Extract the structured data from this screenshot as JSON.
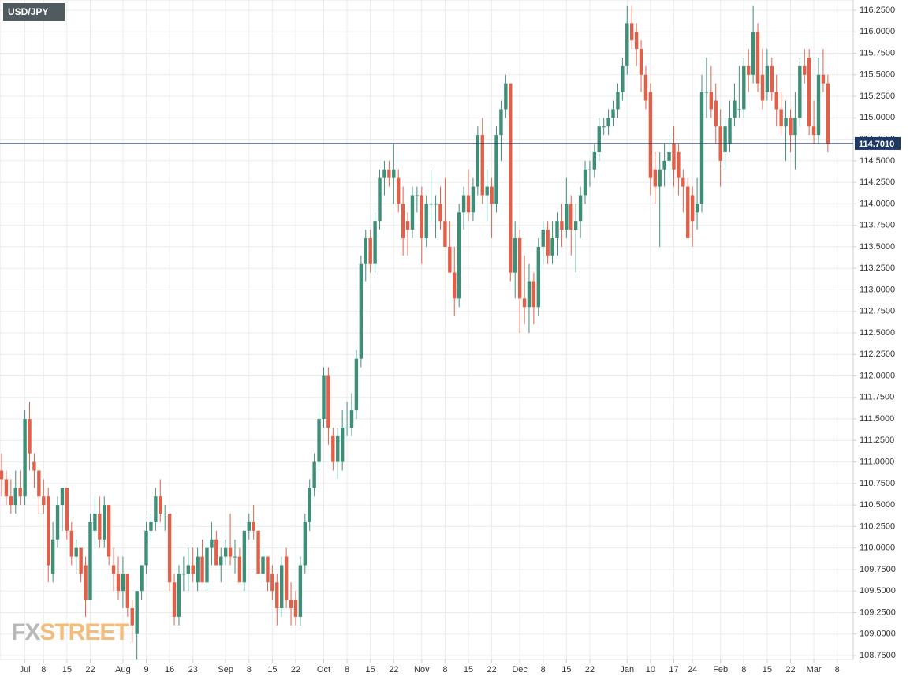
{
  "chart_data": {
    "type": "candlestick",
    "title": "USD/JPY",
    "watermark_prefix": "FX",
    "watermark_suffix": "STREET",
    "up_color": "#3f8f78",
    "down_color": "#e0604a",
    "grid": true,
    "categories": [
      null,
      null,
      null,
      null,
      null,
      "Jul",
      null,
      null,
      null,
      "8",
      null,
      null,
      null,
      null,
      "15",
      null,
      null,
      null,
      null,
      "22",
      null,
      null,
      null,
      null,
      null,
      null,
      "Aug",
      null,
      null,
      null,
      null,
      "9",
      null,
      null,
      null,
      null,
      "16",
      null,
      null,
      null,
      null,
      "23",
      null,
      null,
      null,
      null,
      null,
      null,
      "Sep",
      null,
      null,
      null,
      null,
      "8",
      null,
      null,
      null,
      null,
      "15",
      null,
      null,
      null,
      null,
      "22",
      null,
      null,
      null,
      null,
      null,
      "Oct",
      null,
      null,
      null,
      null,
      "8",
      null,
      null,
      null,
      null,
      "15",
      null,
      null,
      null,
      null,
      "22",
      null,
      null,
      null,
      null,
      null,
      "Nov",
      null,
      null,
      null,
      null,
      "8",
      null,
      null,
      null,
      null,
      "15",
      null,
      null,
      null,
      null,
      "22",
      null,
      null,
      null,
      null,
      null,
      "Dec",
      null,
      null,
      null,
      null,
      "8",
      null,
      null,
      null,
      null,
      "15",
      null,
      null,
      null,
      null,
      "22",
      null,
      null,
      null,
      null,
      null,
      null,
      null,
      "Jan",
      null,
      null,
      null,
      null,
      "10",
      null,
      null,
      null,
      null,
      "17",
      null,
      null,
      null,
      "24",
      null,
      null,
      null,
      null,
      null,
      "Feb",
      null,
      null,
      null,
      null,
      "8",
      null,
      null,
      null,
      null,
      "15",
      null,
      null,
      null,
      null,
      "22",
      null,
      null,
      null,
      null,
      "Mar",
      null,
      null,
      null,
      null,
      "8"
    ],
    "open": [
      110.9,
      110.8,
      110.6,
      110.5,
      110.7,
      110.6,
      111.5,
      111.0,
      110.9,
      110.6,
      110.6,
      109.7,
      110.1,
      110.5,
      110.7,
      110.2,
      109.9,
      110.0,
      109.8,
      109.4,
      110.2,
      110.4,
      110.1,
      110.5,
      109.8,
      109.7,
      109.5,
      109.7,
      109.3,
      109.0,
      109.5,
      109.8,
      110.2,
      110.3,
      110.6,
      110.4,
      110.4,
      109.6,
      109.2,
      109.7,
      109.7,
      109.8,
      109.6,
      109.9,
      109.6,
      110.0,
      110.1,
      109.8,
      109.9,
      110.0,
      109.9,
      109.9,
      109.6,
      110.2,
      110.3,
      110.2,
      109.7,
      109.9,
      109.7,
      109.6,
      109.3,
      109.9,
      109.4,
      109.4,
      109.2,
      109.8,
      110.3,
      110.7,
      111.0,
      111.5,
      112.0,
      111.3,
      111.0,
      111.0,
      111.4,
      111.4,
      111.6,
      112.2,
      113.3,
      113.6,
      113.3,
      113.8,
      114.3,
      114.4,
      114.3,
      114.3,
      114.0,
      113.8,
      113.7,
      114.1,
      114.1,
      113.6,
      114.0,
      114.0,
      114.0,
      113.8,
      113.5,
      113.2,
      112.9,
      113.9,
      114.1,
      113.9,
      114.2,
      114.8,
      114.1,
      114.2,
      114.0,
      114.8,
      115.1,
      115.4,
      113.2,
      113.6,
      112.9,
      112.8,
      113.1,
      112.8,
      113.5,
      113.7,
      113.4,
      113.6,
      113.8,
      113.7,
      114.0,
      113.7,
      113.8,
      114.1,
      114.4,
      114.4,
      114.6,
      114.9,
      114.9,
      115.0,
      115.1,
      115.3,
      115.6,
      116.1,
      116.0,
      115.8,
      115.5,
      115.3,
      114.4,
      114.2,
      114.4,
      114.5,
      114.7,
      114.6,
      114.3,
      114.2,
      114.1,
      113.9,
      114.0,
      115.3,
      115.3,
      115.2,
      114.9,
      114.6,
      114.7,
      115.0,
      115.1,
      115.1,
      115.6,
      115.5,
      116.0,
      115.5,
      115.3,
      115.6,
      115.3,
      115.1,
      114.9,
      115.0,
      114.8,
      115.0,
      115.6,
      115.7,
      114.9,
      114.8,
      115.5,
      115.4,
      null,
      null
    ],
    "high": [
      111.1,
      110.9,
      110.8,
      110.9,
      110.9,
      111.6,
      111.7,
      111.1,
      110.9,
      110.8,
      110.7,
      110.3,
      110.6,
      110.7,
      110.7,
      110.3,
      110.1,
      110.0,
      109.9,
      110.4,
      110.6,
      110.6,
      110.6,
      110.5,
      110.0,
      109.9,
      109.9,
      109.7,
      109.4,
      109.5,
      109.8,
      110.3,
      110.4,
      110.7,
      110.8,
      110.5,
      110.4,
      109.7,
      109.8,
      109.9,
      110.0,
      110.0,
      110.0,
      110.1,
      110.1,
      110.3,
      110.2,
      110.0,
      110.1,
      110.4,
      110.1,
      110.0,
      110.2,
      110.4,
      110.5,
      110.2,
      110.0,
      109.9,
      109.8,
      109.7,
      109.9,
      110.0,
      109.6,
      109.5,
      109.9,
      110.4,
      110.8,
      111.1,
      111.6,
      112.1,
      112.1,
      111.4,
      111.4,
      111.6,
      111.7,
      111.8,
      112.3,
      113.4,
      113.7,
      113.7,
      113.9,
      114.4,
      114.5,
      114.5,
      114.7,
      114.4,
      114.2,
      113.9,
      114.2,
      114.2,
      114.2,
      114.1,
      114.4,
      114.1,
      114.2,
      114.3,
      113.8,
      113.5,
      114.0,
      114.2,
      114.4,
      114.3,
      114.9,
      115.0,
      114.4,
      114.3,
      114.9,
      115.2,
      115.5,
      115.4,
      113.8,
      113.7,
      113.4,
      113.3,
      113.2,
      113.6,
      113.8,
      113.8,
      113.8,
      113.9,
      114.0,
      114.3,
      114.1,
      114.0,
      114.2,
      114.5,
      114.5,
      114.7,
      115.0,
      115.0,
      115.1,
      115.2,
      115.4,
      115.7,
      116.3,
      116.3,
      116.1,
      115.9,
      115.6,
      115.4,
      114.6,
      114.6,
      114.7,
      114.8,
      114.9,
      114.7,
      114.4,
      114.3,
      114.2,
      114.3,
      115.5,
      115.7,
      115.6,
      115.4,
      115.1,
      115.0,
      115.2,
      115.4,
      115.6,
      115.7,
      115.8,
      116.3,
      116.1,
      115.8,
      115.8,
      115.7,
      115.5,
      115.3,
      115.2,
      115.1,
      115.3,
      115.7,
      115.8,
      115.8,
      115.2,
      115.7,
      115.8,
      115.5,
      null,
      null
    ],
    "low": [
      110.6,
      110.5,
      110.4,
      110.4,
      110.5,
      110.5,
      110.9,
      110.7,
      110.4,
      110.4,
      109.6,
      109.6,
      110.0,
      110.2,
      110.1,
      109.8,
      109.7,
      109.6,
      109.2,
      109.4,
      110.0,
      110.0,
      110.0,
      109.8,
      109.5,
      109.4,
      109.3,
      109.2,
      108.9,
      108.7,
      109.4,
      109.7,
      110.1,
      110.2,
      110.3,
      110.2,
      109.5,
      109.1,
      109.1,
      109.5,
      109.5,
      109.6,
      109.5,
      109.6,
      109.5,
      109.8,
      109.8,
      109.6,
      109.8,
      109.8,
      109.7,
      109.6,
      109.5,
      110.1,
      110.1,
      109.7,
      109.6,
      109.5,
      109.4,
      109.1,
      109.2,
      109.3,
      109.1,
      109.1,
      109.1,
      109.7,
      110.2,
      110.6,
      110.9,
      111.4,
      111.2,
      110.9,
      110.8,
      110.9,
      111.3,
      111.3,
      111.5,
      112.1,
      113.1,
      113.2,
      113.2,
      113.7,
      114.1,
      114.2,
      114.0,
      113.9,
      113.4,
      113.4,
      113.6,
      113.9,
      113.3,
      113.5,
      113.8,
      113.6,
      113.7,
      113.5,
      113.2,
      112.7,
      112.8,
      113.7,
      113.8,
      113.8,
      114.1,
      114.0,
      113.8,
      113.6,
      113.9,
      114.5,
      115.0,
      113.1,
      112.9,
      112.5,
      112.6,
      112.5,
      112.6,
      112.7,
      113.3,
      113.3,
      113.3,
      113.4,
      113.5,
      113.6,
      113.4,
      113.2,
      113.6,
      114.0,
      114.2,
      114.3,
      114.5,
      114.8,
      114.8,
      114.9,
      115.0,
      115.2,
      115.5,
      115.8,
      115.6,
      115.3,
      115.1,
      114.1,
      114.0,
      113.5,
      114.2,
      114.3,
      114.2,
      114.1,
      113.9,
      113.6,
      113.5,
      113.7,
      113.9,
      115.0,
      115.0,
      114.7,
      114.2,
      114.4,
      114.6,
      114.9,
      115.0,
      115.0,
      115.3,
      115.4,
      115.3,
      115.1,
      115.2,
      115.2,
      114.9,
      114.8,
      114.5,
      114.6,
      114.4,
      114.9,
      115.4,
      114.8,
      114.7,
      114.7,
      115.3,
      114.6,
      null,
      null
    ],
    "close": [
      110.8,
      110.6,
      110.5,
      110.7,
      110.6,
      111.5,
      111.1,
      110.9,
      110.6,
      110.5,
      109.8,
      110.1,
      110.5,
      110.7,
      110.2,
      109.9,
      110.0,
      109.7,
      109.4,
      110.3,
      110.4,
      110.1,
      110.5,
      109.9,
      109.7,
      109.5,
      109.7,
      109.3,
      109.1,
      109.5,
      109.8,
      110.2,
      110.3,
      110.6,
      110.4,
      110.4,
      109.6,
      109.2,
      109.7,
      109.7,
      109.8,
      109.7,
      109.9,
      109.6,
      110.0,
      110.1,
      109.8,
      109.9,
      110.0,
      109.9,
      109.9,
      109.6,
      110.2,
      110.3,
      110.2,
      109.7,
      109.9,
      109.6,
      109.5,
      109.3,
      109.8,
      109.4,
      109.3,
      109.2,
      109.8,
      110.3,
      110.7,
      111.0,
      111.5,
      112.0,
      111.4,
      111.0,
      111.3,
      111.4,
      111.4,
      111.6,
      112.2,
      113.3,
      113.6,
      113.3,
      113.8,
      114.3,
      114.4,
      114.3,
      114.4,
      114.0,
      113.6,
      113.7,
      114.1,
      114.1,
      113.6,
      114.0,
      114.0,
      114.0,
      113.8,
      113.5,
      113.2,
      112.9,
      113.9,
      114.1,
      113.9,
      114.2,
      114.8,
      114.1,
      114.2,
      114.0,
      114.8,
      115.1,
      115.4,
      113.2,
      113.6,
      112.9,
      112.8,
      113.1,
      112.8,
      113.5,
      113.7,
      113.4,
      113.6,
      113.8,
      113.7,
      114.0,
      113.7,
      113.8,
      114.1,
      114.4,
      114.4,
      114.6,
      114.9,
      114.9,
      115.0,
      115.1,
      115.3,
      115.6,
      116.1,
      115.9,
      115.8,
      115.5,
      115.2,
      114.3,
      114.2,
      114.4,
      114.5,
      114.6,
      114.4,
      114.3,
      114.2,
      113.6,
      113.8,
      114.0,
      115.3,
      115.3,
      115.1,
      114.9,
      114.5,
      114.9,
      115.0,
      115.2,
      115.1,
      115.6,
      115.5,
      116.0,
      115.4,
      115.2,
      115.6,
      115.3,
      115.1,
      114.9,
      115.0,
      114.8,
      115.0,
      115.6,
      115.5,
      114.9,
      114.8,
      115.5,
      115.4,
      114.7,
      null,
      null
    ],
    "price_line": {
      "value": 114.701,
      "label": "114.7010",
      "color": "#1f3864"
    },
    "ylim": [
      108.704,
      116.369
    ],
    "yticks": [
      {
        "value": 108.75,
        "label": "108.7500"
      },
      {
        "value": 109.0,
        "label": "109.0000"
      },
      {
        "value": 109.25,
        "label": "109.2500"
      },
      {
        "value": 109.5,
        "label": "109.5000"
      },
      {
        "value": 109.75,
        "label": "109.7500"
      },
      {
        "value": 110.0,
        "label": "110.0000"
      },
      {
        "value": 110.25,
        "label": "110.2500"
      },
      {
        "value": 110.5,
        "label": "110.5000"
      },
      {
        "value": 110.75,
        "label": "110.7500"
      },
      {
        "value": 111.0,
        "label": "111.0000"
      },
      {
        "value": 111.25,
        "label": "111.2500"
      },
      {
        "value": 111.5,
        "label": "111.5000"
      },
      {
        "value": 111.75,
        "label": "111.7500"
      },
      {
        "value": 112.0,
        "label": "112.0000"
      },
      {
        "value": 112.25,
        "label": "112.2500"
      },
      {
        "value": 112.5,
        "label": "112.5000"
      },
      {
        "value": 112.75,
        "label": "112.7500"
      },
      {
        "value": 113.0,
        "label": "113.0000"
      },
      {
        "value": 113.25,
        "label": "113.2500"
      },
      {
        "value": 113.5,
        "label": "113.5000"
      },
      {
        "value": 113.75,
        "label": "113.7500"
      },
      {
        "value": 114.0,
        "label": "114.0000"
      },
      {
        "value": 114.25,
        "label": "114.2500"
      },
      {
        "value": 114.5,
        "label": "114.5000"
      },
      {
        "value": 114.75,
        "label": "114.7500"
      },
      {
        "value": 115.0,
        "label": "115.0000"
      },
      {
        "value": 115.25,
        "label": "115.2500"
      },
      {
        "value": 115.5,
        "label": "115.5000"
      },
      {
        "value": 115.75,
        "label": "115.7500"
      },
      {
        "value": 116.0,
        "label": "116.0000"
      },
      {
        "value": 116.25,
        "label": "116.2500"
      }
    ]
  }
}
